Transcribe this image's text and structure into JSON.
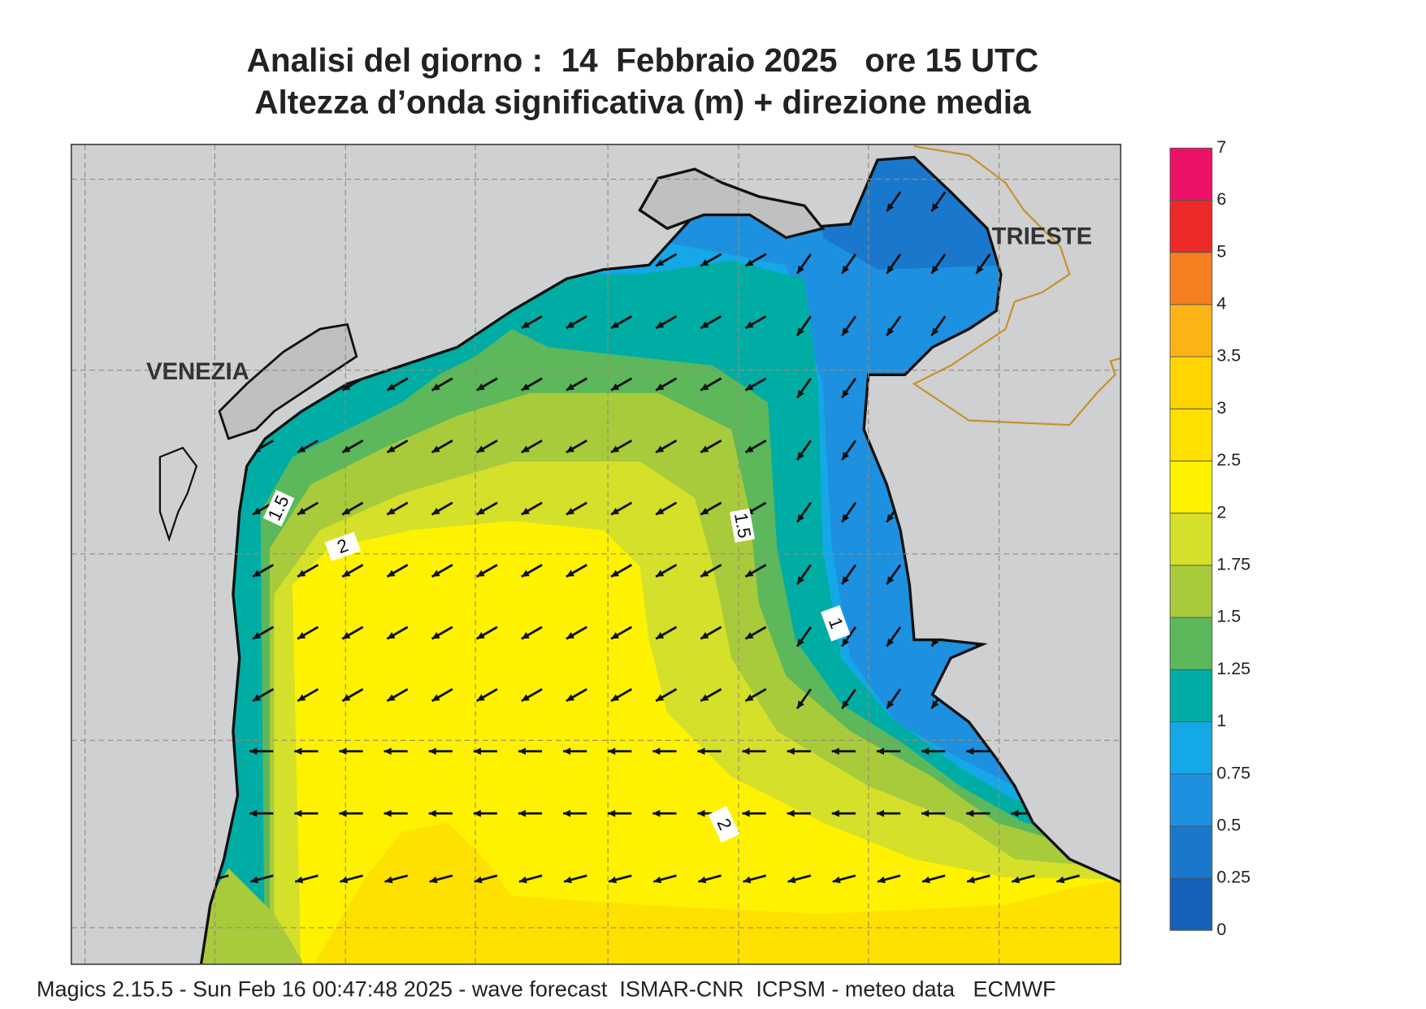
{
  "title": [
    "Analisi del giorno :  14  Febbraio 2025   ore 15 UTC",
    "Altezza d’onda significativa (m) + direzione media"
  ],
  "place_labels": [
    "VENEZIA",
    "TRIESTE"
  ],
  "colorbar": {
    "ticks": [
      0,
      0.25,
      0.5,
      0.75,
      1,
      1.25,
      1.5,
      1.75,
      2,
      2.5,
      3,
      3.5,
      4,
      5,
      6,
      7
    ],
    "colors": [
      "#1560b8",
      "#1a78cc",
      "#1e90e0",
      "#14a8e8",
      "#00ada5",
      "#5cb85a",
      "#a8cb3c",
      "#d4e02a",
      "#fff200",
      "#ffe100",
      "#ffd400",
      "#fcb316",
      "#f47f20",
      "#ec2a2a",
      "#ec1268"
    ]
  },
  "contour_labels": [
    "1.5",
    "2",
    "1.5",
    "1",
    "2"
  ],
  "footer": "Magics 2.15.5 - Sun Feb 16 00:47:48 2025 - wave forecast  ISMAR-CNR  ICPSM - meteo data   ECMWF"
}
